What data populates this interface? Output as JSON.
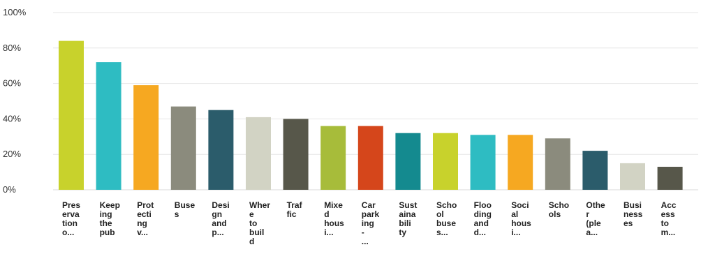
{
  "chart_data": {
    "type": "bar",
    "categories": [
      "Pres erva tion o...",
      "Keep ing the pub",
      "Prot ecti ng v...",
      "Buse s",
      "Desi gn and p...",
      "Wher e to buil d",
      "Traf fic",
      "Mixe d hous i...",
      "Car park ing - ...",
      "Sust aina bili ty",
      "Scho ol buse s...",
      "Floo ding and d...",
      "Soci al hous i...",
      "Scho ols",
      "Othe r (ple a...",
      "Busi ness es",
      "Acc ess to m..."
    ],
    "category_lines": [
      [
        "Pres",
        "erva",
        "tion",
        "o..."
      ],
      [
        "Keep",
        "ing",
        "the",
        "pub"
      ],
      [
        "Prot",
        "ecti",
        "ng",
        "v..."
      ],
      [
        "Buse",
        "s"
      ],
      [
        "Desi",
        "gn",
        "and",
        "p..."
      ],
      [
        "Wher",
        "e",
        "to",
        "buil",
        "d"
      ],
      [
        "Traf",
        "fic"
      ],
      [
        "Mixe",
        "d",
        "hous",
        "i..."
      ],
      [
        "Car",
        "park",
        "ing",
        "-",
        "..."
      ],
      [
        "Sust",
        "aina",
        "bili",
        "ty"
      ],
      [
        "Scho",
        "ol",
        "buse",
        "s..."
      ],
      [
        "Floo",
        "ding",
        "and",
        "d..."
      ],
      [
        "Soci",
        "al",
        "hous",
        "i..."
      ],
      [
        "Scho",
        "ols"
      ],
      [
        "Othe",
        "r",
        "(ple",
        "a..."
      ],
      [
        "Busi",
        "ness",
        "es"
      ],
      [
        "Acc",
        "ess",
        "to",
        "m..."
      ]
    ],
    "values": [
      84,
      72,
      59,
      47,
      45,
      41,
      40,
      36,
      36,
      32,
      32,
      31,
      31,
      29,
      22,
      15,
      13
    ],
    "colors": [
      "#c8d22c",
      "#2ebcc2",
      "#f6a821",
      "#8b8b7d",
      "#2b5c6b",
      "#d2d3c4",
      "#57574a",
      "#a7bc3a",
      "#d5461b",
      "#148a8f",
      "#c8d22c",
      "#2ebcc2",
      "#f6a821",
      "#8b8b7d",
      "#2b5c6b",
      "#d2d3c4",
      "#57574a"
    ],
    "ylim": [
      0,
      100
    ],
    "yticks": [
      0,
      20,
      40,
      60,
      80,
      100
    ],
    "ytick_labels": [
      "0%",
      "20%",
      "40%",
      "60%",
      "80%",
      "100%"
    ],
    "title": "",
    "xlabel": "",
    "ylabel": "",
    "grid": true,
    "gridline_color": "#e6e6e6"
  }
}
